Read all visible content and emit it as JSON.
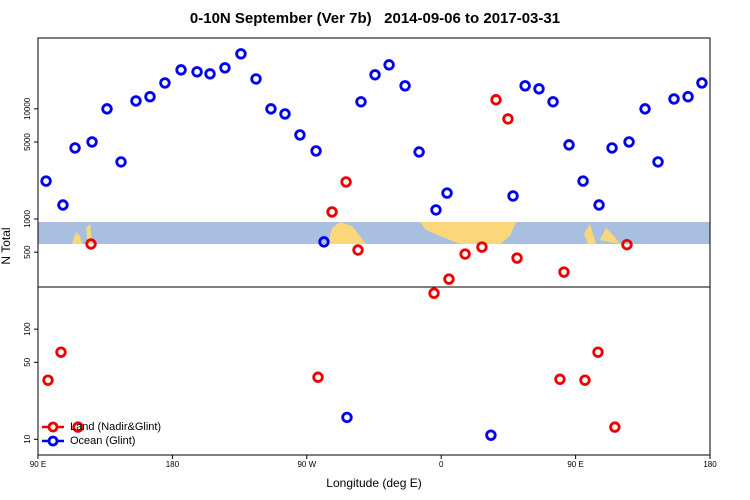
{
  "chart_data": {
    "type": "scatter",
    "title": "0-10N September (Ver 7b)   2014-09-06 to 2017-03-31",
    "xlabel": "Longitude (deg E)",
    "ylabel": "N Total",
    "yscale": "log",
    "legend": "lower left",
    "xlim": [
      90,
      540
    ],
    "xticks": [
      {
        "value": 90,
        "label": "90 E"
      },
      180,
      {
        "value": 270,
        "label": "90 W"
      },
      {
        "value": 360,
        "label": "0"
      },
      {
        "value": 450,
        "label": "90 E"
      },
      {
        "value": 540,
        "label": "180"
      }
    ],
    "ylim": [
      7.2,
      44000
    ],
    "yticks": [
      10,
      50,
      100,
      500,
      1000,
      5000,
      10000
    ],
    "series": [
      {
        "name": "Land (Nadir&Glint)",
        "color": "#ee0000",
        "x": [
          96.7,
          105.4,
          116.8,
          125.5,
          277.5,
          286.9,
          296.3,
          304.3,
          355.2,
          365.2,
          376,
          387.3,
          396.7,
          404.7,
          410.8,
          439.5,
          442.2,
          456.3,
          465,
          476.3,
          484.4
        ],
        "values": [
          34.4,
          61.8,
          12.9,
          593,
          36.6,
          1160,
          2170,
          523,
          212,
          285,
          481,
          556,
          12100,
          8110,
          442,
          35.1,
          330,
          34.4,
          61.8,
          12.9,
          585
        ]
      },
      {
        "name": "Ocean (Glint)",
        "color": "#0000ee",
        "x": [
          95.4,
          106.7,
          114.8,
          126.2,
          136.2,
          145.6,
          155.6,
          165,
          175,
          185.8,
          196.5,
          205.2,
          215.2,
          225.9,
          236,
          246,
          255.4,
          265.4,
          276.2,
          281.5,
          296.9,
          306.3,
          315.7,
          325.1,
          335.8,
          345.2,
          356.5,
          363.9,
          393.3,
          408.1,
          416.2,
          425.5,
          434.9,
          445.6,
          455,
          465.7,
          474.4,
          485.8,
          496.5,
          505.2,
          515.9,
          525.3,
          534.6
        ],
        "values": [
          2210,
          1340,
          4420,
          5010,
          10000,
          3300,
          11800,
          12900,
          17200,
          22600,
          21700,
          20800,
          23600,
          31600,
          18700,
          10000,
          9000,
          5800,
          4150,
          620,
          15.8,
          11600,
          20400,
          25100,
          16200,
          4060,
          1210,
          1720,
          10.9,
          1620,
          16200,
          15200,
          11600,
          4710,
          2210,
          1340,
          4420,
          5010,
          10000,
          3300,
          12300,
          12900,
          17200
        ]
      }
    ]
  }
}
